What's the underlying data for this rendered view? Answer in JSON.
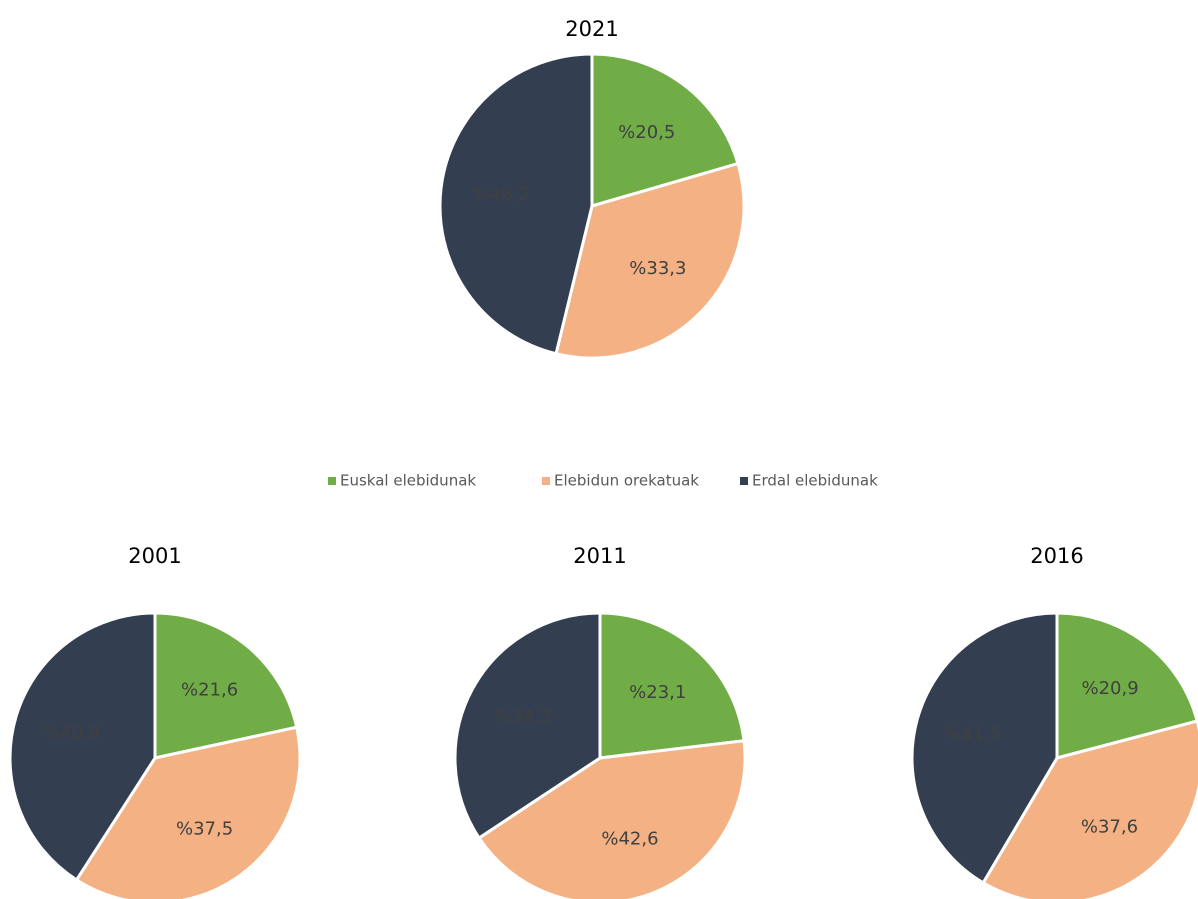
{
  "legend": {
    "categories": [
      "Euskal elebidunak",
      "Elebidun orekatuak",
      "Erdal elebidunak"
    ],
    "colors": [
      "#70ad47",
      "#f4b183",
      "#333f50"
    ]
  },
  "chart_data": [
    {
      "type": "pie",
      "title": "2021",
      "values": [
        20.5,
        33.3,
        46.2
      ],
      "value_labels": [
        "%20,5",
        "%33,3",
        "%46,2"
      ]
    },
    {
      "type": "pie",
      "title": "2001",
      "values": [
        21.6,
        37.5,
        40.9
      ],
      "value_labels": [
        "%21,6",
        "%37,5",
        "%40,9"
      ]
    },
    {
      "type": "pie",
      "title": "2011",
      "values": [
        23.1,
        42.6,
        34.3
      ],
      "value_labels": [
        "%23,1",
        "%42,6",
        "%34,3"
      ]
    },
    {
      "type": "pie",
      "title": "2016",
      "values": [
        20.9,
        37.6,
        41.5
      ],
      "value_labels": [
        "%20,9",
        "%37,6",
        "%41,5"
      ]
    }
  ]
}
